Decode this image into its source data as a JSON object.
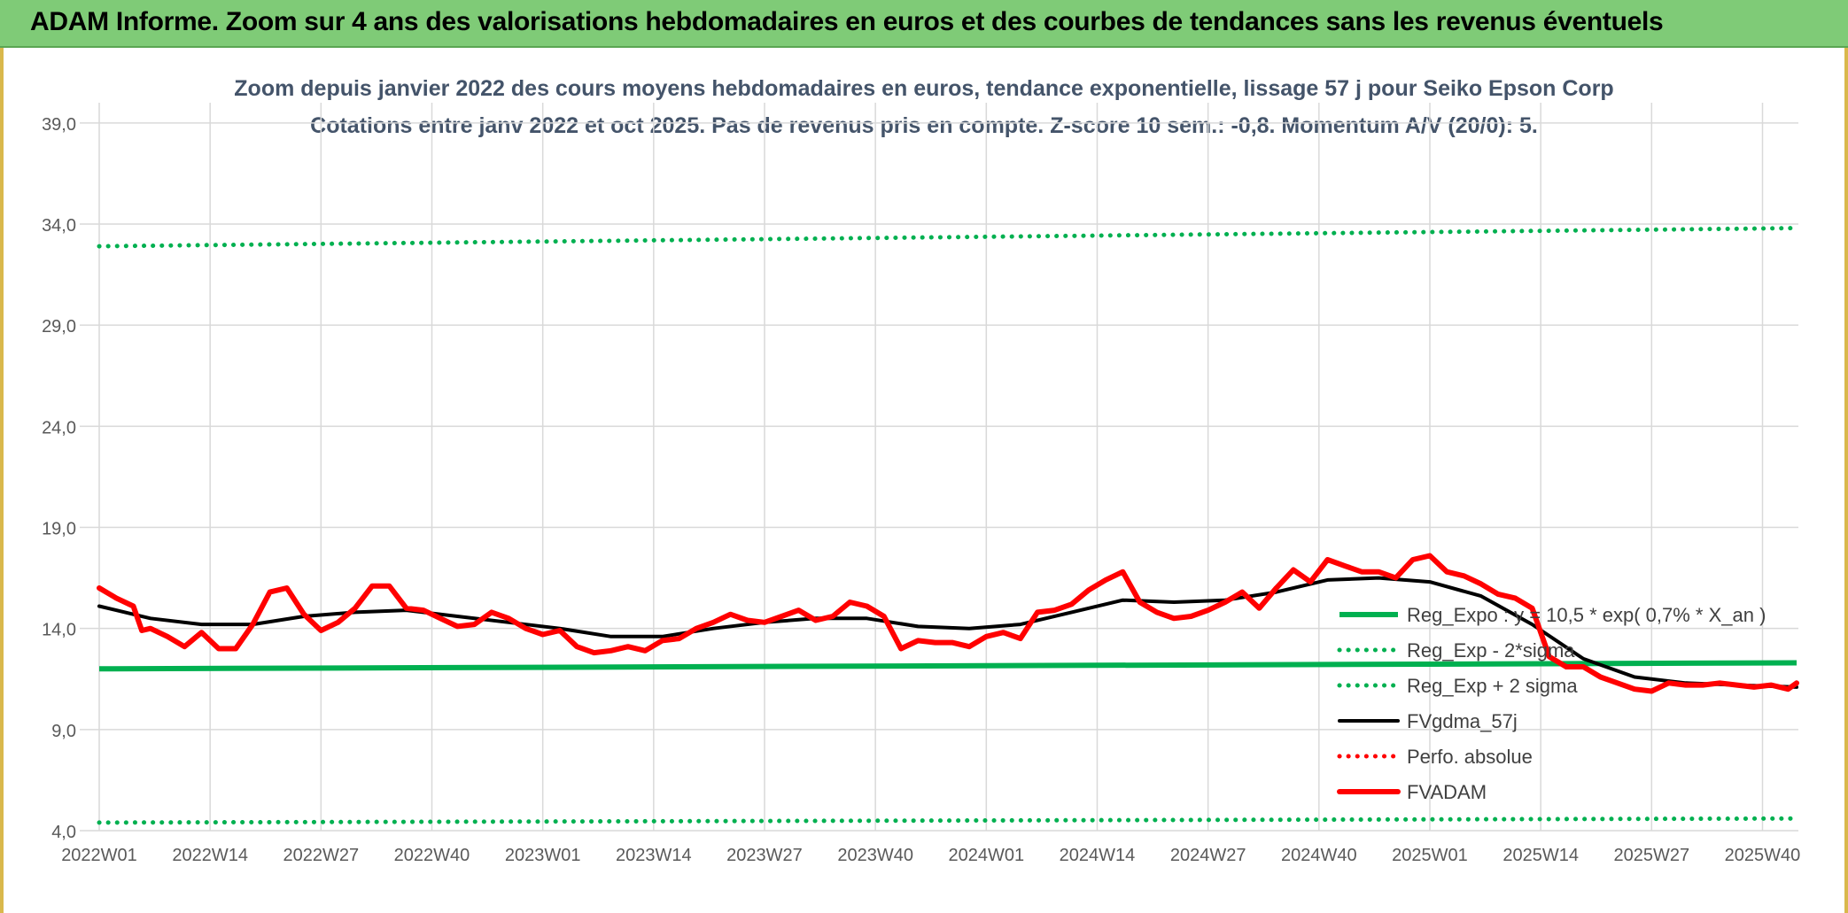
{
  "banner": {
    "title": "ADAM Informe. Zoom sur 4 ans des valorisations hebdomadaires en euros et des courbes de tendances sans les revenus éventuels"
  },
  "chart_data": {
    "type": "line",
    "title": "Zoom depuis janvier 2022 des cours moyens hebdomadaires en euros, tendance exponentielle, lissage 57 j pour Seiko Epson Corp",
    "subtitle": "Cotations entre janv 2022 et oct 2025. Pas de revenus pris en compte. Z-score 10 sem.: -0,8. Momentum A/V (20/0): 5.",
    "xlabel": "",
    "ylabel": "",
    "ylim": [
      4,
      40
    ],
    "grid": true,
    "legend_position": "right",
    "x_week_range": [
      0,
      199
    ],
    "y_ticks": [
      "4,0",
      "9,0",
      "14,0",
      "19,0",
      "24,0",
      "29,0",
      "34,0",
      "39,0"
    ],
    "y_tick_values": [
      4,
      9,
      14,
      19,
      24,
      29,
      34,
      39
    ],
    "x_ticks": [
      "2022W01",
      "2022W14",
      "2022W27",
      "2022W40",
      "2023W01",
      "2023W14",
      "2023W27",
      "2023W40",
      "2024W01",
      "2024W14",
      "2024W27",
      "2024W40",
      "2025W01",
      "2025W14",
      "2025W27",
      "2025W40"
    ],
    "x_tick_weeks": [
      0,
      13,
      26,
      39,
      52,
      65,
      78,
      91,
      104,
      117,
      130,
      143,
      156,
      169,
      182,
      195
    ],
    "series": [
      {
        "name": "Reg_Expo : y = 10,5 * exp( 0,7% *  X_an )",
        "color": "#00b050",
        "style": "solid",
        "x": [
          0,
          199
        ],
        "y": [
          12.0,
          12.3
        ]
      },
      {
        "name": "Reg_Exp - 2*sigma",
        "color": "#00b050",
        "style": "dotted",
        "x": [
          0,
          199
        ],
        "y": [
          4.4,
          4.6
        ]
      },
      {
        "name": "Reg_Exp + 2 sigma",
        "color": "#00b050",
        "style": "dotted",
        "x": [
          0,
          199
        ],
        "y": [
          32.9,
          33.8
        ]
      },
      {
        "name": "FVgdma_57j",
        "color": "#000000",
        "style": "solid",
        "x": [
          0,
          6,
          12,
          18,
          24,
          30,
          36,
          42,
          48,
          54,
          60,
          66,
          72,
          78,
          84,
          90,
          96,
          102,
          108,
          114,
          120,
          126,
          132,
          138,
          144,
          150,
          156,
          162,
          168,
          174,
          180,
          186,
          192,
          199
        ],
        "y": [
          15.1,
          14.5,
          14.2,
          14.2,
          14.6,
          14.8,
          14.9,
          14.6,
          14.3,
          14.0,
          13.6,
          13.6,
          14.0,
          14.3,
          14.5,
          14.5,
          14.1,
          14.0,
          14.2,
          14.8,
          15.4,
          15.3,
          15.4,
          15.8,
          16.4,
          16.5,
          16.3,
          15.6,
          14.2,
          12.5,
          11.6,
          11.3,
          11.2,
          11.1
        ]
      },
      {
        "name": "Perfo. absolue",
        "color": "#ff0000",
        "style": "dotted",
        "x": [],
        "y": []
      },
      {
        "name": "FVADAM",
        "color": "#ff0000",
        "style": "solid",
        "x": [
          0,
          2,
          4,
          5,
          6,
          8,
          10,
          12,
          14,
          16,
          18,
          20,
          22,
          24,
          26,
          28,
          30,
          32,
          34,
          36,
          38,
          40,
          42,
          44,
          46,
          48,
          50,
          52,
          54,
          56,
          58,
          60,
          62,
          64,
          66,
          68,
          70,
          72,
          74,
          76,
          78,
          80,
          82,
          84,
          86,
          88,
          90,
          92,
          94,
          96,
          98,
          100,
          102,
          104,
          106,
          108,
          110,
          112,
          114,
          116,
          118,
          120,
          122,
          124,
          126,
          128,
          130,
          132,
          134,
          136,
          138,
          140,
          142,
          144,
          146,
          148,
          150,
          152,
          154,
          156,
          158,
          160,
          162,
          164,
          166,
          168,
          170,
          172,
          174,
          176,
          178,
          180,
          182,
          184,
          186,
          188,
          190,
          192,
          194,
          196,
          198,
          199
        ],
        "y": [
          16.0,
          15.5,
          15.1,
          13.9,
          14.0,
          13.6,
          13.1,
          13.8,
          13.0,
          13.0,
          14.2,
          15.8,
          16.0,
          14.7,
          13.9,
          14.3,
          15.0,
          16.1,
          16.1,
          15.0,
          14.9,
          14.5,
          14.1,
          14.2,
          14.8,
          14.5,
          14.0,
          13.7,
          13.9,
          13.1,
          12.8,
          12.9,
          13.1,
          12.9,
          13.4,
          13.5,
          14.0,
          14.3,
          14.7,
          14.4,
          14.3,
          14.6,
          14.9,
          14.4,
          14.6,
          15.3,
          15.1,
          14.6,
          13.0,
          13.4,
          13.3,
          13.3,
          13.1,
          13.6,
          13.8,
          13.5,
          14.8,
          14.9,
          15.2,
          15.9,
          16.4,
          16.8,
          15.3,
          14.8,
          14.5,
          14.6,
          14.9,
          15.3,
          15.8,
          15.0,
          16.0,
          16.9,
          16.3,
          17.4,
          17.1,
          16.8,
          16.8,
          16.5,
          17.4,
          17.6,
          16.8,
          16.6,
          16.2,
          15.7,
          15.5,
          15.0,
          12.6,
          12.1,
          12.1,
          11.6,
          11.3,
          11.0,
          10.9,
          11.3,
          11.2,
          11.2,
          11.3,
          11.2,
          11.1,
          11.2,
          11.0,
          11.3
        ]
      }
    ]
  }
}
